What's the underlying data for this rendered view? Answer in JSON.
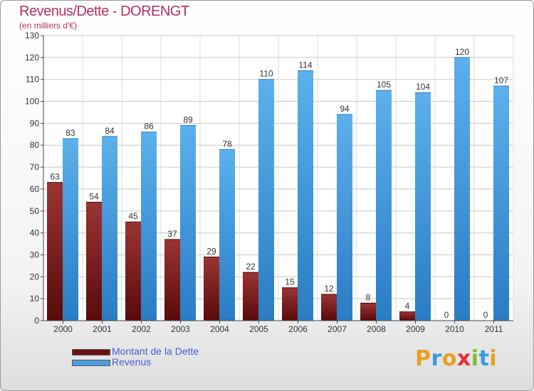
{
  "chart_data": {
    "type": "bar",
    "title": "Revenus/Dette - DORENGT",
    "subtitle": "(en milliers d'€)",
    "categories": [
      "2000",
      "2001",
      "2002",
      "2003",
      "2004",
      "2005",
      "2006",
      "2007",
      "2008",
      "2009",
      "2010",
      "2011"
    ],
    "series": [
      {
        "name": "Montant de la Dette",
        "color": "#7a1a1a",
        "values": [
          63,
          54,
          45,
          37,
          29,
          22,
          15,
          12,
          8,
          4,
          0,
          0
        ]
      },
      {
        "name": "Revenus",
        "color": "#4a9fe0",
        "values": [
          83,
          84,
          86,
          89,
          78,
          110,
          114,
          94,
          105,
          104,
          120,
          107
        ]
      }
    ],
    "ylim": [
      0,
      130
    ],
    "yticks": [
      0,
      10,
      20,
      30,
      40,
      50,
      60,
      70,
      80,
      90,
      100,
      110,
      120,
      130
    ],
    "grid": true,
    "legend_position": "bottom-left"
  },
  "logo": {
    "letters": [
      "P",
      "r",
      "o",
      "x",
      "i",
      "t",
      "i"
    ],
    "colors": [
      "#e8a020",
      "#3a9be0",
      "#e8a020",
      "#e83030",
      "#7ac030",
      "#3a9be0",
      "#e8a020"
    ]
  }
}
